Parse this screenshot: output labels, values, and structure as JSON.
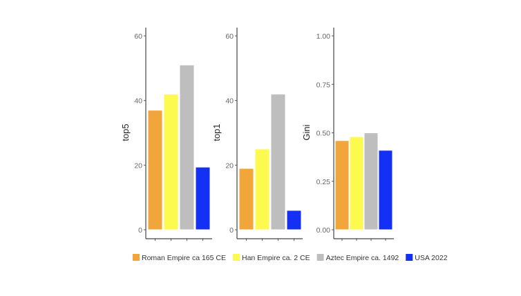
{
  "colors": {
    "Roman Empire ca 165 CE": "#F0A63B",
    "Han Empire ca. 2 CE": "#FDFA4F",
    "Aztec Empire ca. 1492": "#BEBEBE",
    "USA 2022": "#1430F5"
  },
  "chart_data": [
    {
      "type": "bar",
      "ylabel": "top5",
      "ylim": [
        0,
        60
      ],
      "yticks": [
        "0",
        "20",
        "40",
        "60"
      ],
      "ytick_values": [
        0,
        20,
        40,
        60
      ],
      "categories": [
        "Roman Empire ca 165 CE",
        "Han Empire ca. 2 CE",
        "Aztec Empire ca. 1492",
        "USA 2022"
      ],
      "values": [
        37,
        42,
        51,
        19.4
      ]
    },
    {
      "type": "bar",
      "ylabel": "top1",
      "ylim": [
        0,
        60
      ],
      "yticks": [
        "0",
        "20",
        "40",
        "60"
      ],
      "ytick_values": [
        0,
        20,
        40,
        60
      ],
      "categories": [
        "Roman Empire ca 165 CE",
        "Han Empire ca. 2 CE",
        "Aztec Empire ca. 1492",
        "USA 2022"
      ],
      "values": [
        19,
        25,
        42,
        6
      ]
    },
    {
      "type": "bar",
      "ylabel": "Gini",
      "ylim": [
        0,
        1
      ],
      "yticks": [
        "0.00",
        "0.25",
        "0.50",
        "0.75",
        "1.00"
      ],
      "ytick_values": [
        0,
        0.25,
        0.5,
        0.75,
        1
      ],
      "categories": [
        "Roman Empire ca 165 CE",
        "Han Empire ca. 2 CE",
        "Aztec Empire ca. 1492",
        "USA 2022"
      ],
      "values": [
        0.46,
        0.48,
        0.5,
        0.41
      ]
    }
  ],
  "legend": {
    "position": "bottom",
    "items": [
      "Roman Empire ca 165 CE",
      "Han Empire ca. 2 CE",
      "Aztec Empire ca. 1492",
      "USA 2022"
    ]
  }
}
